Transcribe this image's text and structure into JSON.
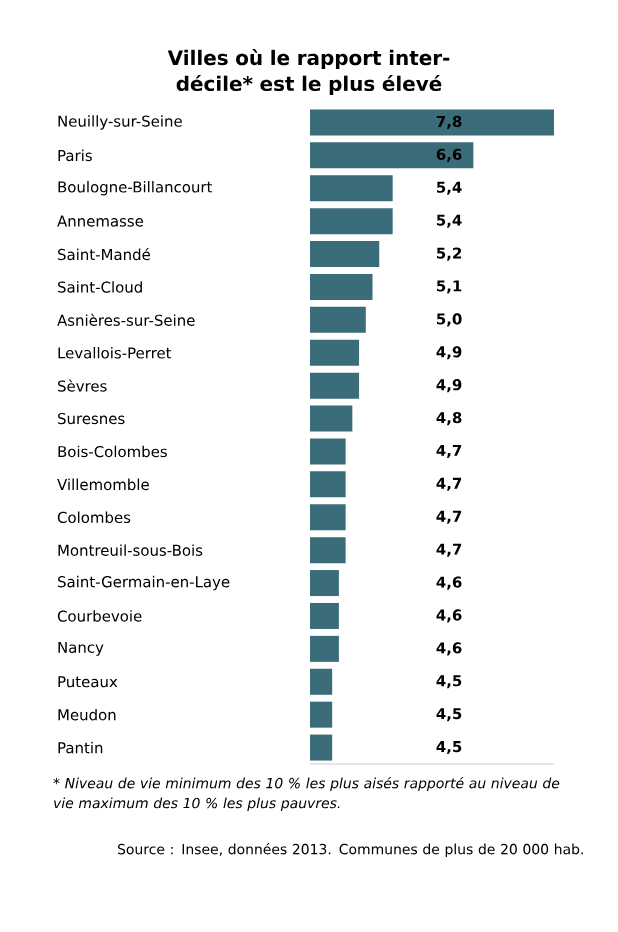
{
  "chart_data": {
    "type": "bar",
    "orientation": "horizontal",
    "title": "Villes où le rapport inter-décile* est le plus élevé",
    "categories": [
      "Neuilly-sur-Seine",
      "Paris",
      "Boulogne-Billancourt",
      "Annemasse",
      "Saint-Mandé",
      "Saint-Cloud",
      "Asnières-sur-Seine",
      "Levallois-Perret",
      "Sèvres",
      "Suresnes",
      "Bois-Colombes",
      "Villemomble",
      "Colombes",
      "Montreuil-sous-Bois",
      "Saint-Germain-en-Laye",
      "Courbevoie",
      "Nancy",
      "Puteaux",
      "Meudon",
      "Pantin"
    ],
    "values": [
      7.8,
      6.6,
      5.4,
      5.4,
      5.2,
      5.1,
      5.0,
      4.9,
      4.9,
      4.8,
      4.7,
      4.7,
      4.7,
      4.7,
      4.6,
      4.6,
      4.6,
      4.5,
      4.5,
      4.5
    ],
    "value_labels": [
      "7,8",
      "6,6",
      "5,4",
      "5,4",
      "5,2",
      "5,1",
      "5,0",
      "4,9",
      "4,9",
      "4,8",
      "4,7",
      "4,7",
      "4,7",
      "4,7",
      "4,6",
      "4,6",
      "4,6",
      "4,5",
      "4,5",
      "4,5"
    ],
    "color": "#3b6c79",
    "xlim": [
      4.17,
      7.8
    ],
    "tick_labels": "y",
    "annotations": [
      "* Niveau de vie minimum des 10 % les plus aisés rapporté au niveau de vie maximum des 10 % les plus pauvres.",
      "Source : Insee, données 2013. Communes de plus de 20 000 hab."
    ]
  }
}
